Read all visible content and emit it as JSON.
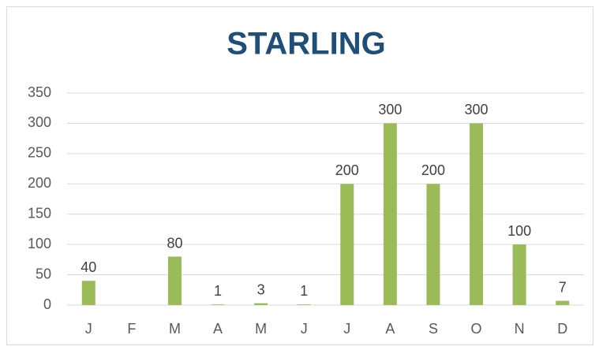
{
  "chart_data": {
    "type": "bar",
    "title": "STARLING",
    "categories": [
      "J",
      "F",
      "M",
      "A",
      "M",
      "J",
      "J",
      "A",
      "S",
      "O",
      "N",
      "D"
    ],
    "values": [
      40,
      null,
      80,
      1,
      3,
      1,
      200,
      300,
      200,
      300,
      100,
      7
    ],
    "color": "#9bbb59",
    "ylim": [
      0,
      350
    ],
    "yticks": [
      0,
      50,
      100,
      150,
      200,
      250,
      300,
      350
    ],
    "grid": true
  }
}
